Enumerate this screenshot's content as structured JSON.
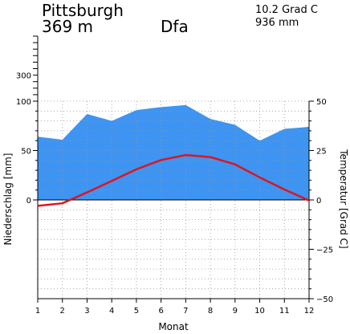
{
  "header": {
    "station": "Pittsburgh",
    "elevation": "369 m",
    "climate_class": "Dfa",
    "mean_temp": "10.2 Grad C",
    "annual_precip": "936 mm"
  },
  "chart_data": {
    "type": "line",
    "x": [
      1,
      2,
      3,
      4,
      5,
      6,
      7,
      8,
      9,
      10,
      11,
      12
    ],
    "xlabel": "Monat",
    "ylabel_left": "Niederschlag [mm]",
    "ylabel_right": "Temperatur [Grad C]",
    "precip_ylim": [
      0,
      100
    ],
    "precip_ticks": [
      "0",
      "50",
      "100",
      "300"
    ],
    "temp_ylim": [
      -50,
      50
    ],
    "temp_ticks": [
      "50",
      "25",
      "0",
      "−25",
      "−50"
    ],
    "grid": true,
    "series": [
      {
        "values": [
          64,
          61,
          87,
          80,
          91,
          94,
          96,
          82,
          76,
          60,
          72,
          74
        ]
      },
      {
        "values": [
          -3,
          -1.7,
          3.8,
          9.6,
          15.5,
          20.2,
          22.7,
          21.7,
          18.0,
          11.4,
          5.3,
          -0.3
        ]
      }
    ],
    "colors": {
      "precip_fill": "#3d94f2",
      "temp_line": "#e0141e"
    }
  }
}
